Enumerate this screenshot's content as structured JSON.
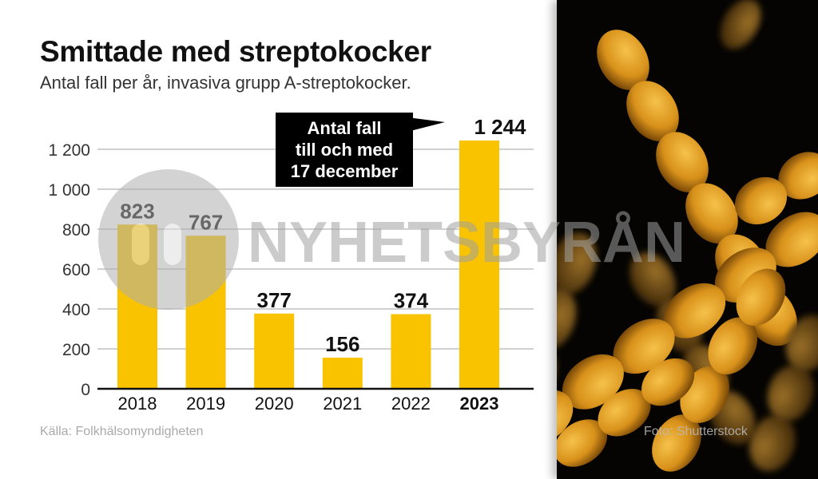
{
  "title": "Smittade med streptokocker",
  "subtitle": "Antal fall per år, invasiva grupp A-streptokocker.",
  "source": "Källa: Folkhälsomyndigheten",
  "photo_credit": "Foto: Shutterstock",
  "watermark": "NYHETSBYRÅN",
  "colors": {
    "bar": "#f9c300",
    "grid": "#b5b5b5",
    "axis": "#111111",
    "annotation_bg": "#000000"
  },
  "chart_data": {
    "type": "bar",
    "title": "Smittade med streptokocker",
    "subtitle": "Antal fall per år, invasiva grupp A-streptokocker.",
    "xlabel": "",
    "ylabel": "",
    "categories": [
      "2018",
      "2019",
      "2020",
      "2021",
      "2022",
      "2023"
    ],
    "values": [
      823,
      767,
      377,
      156,
      374,
      1244
    ],
    "value_labels": [
      "823",
      "767",
      "377",
      "156",
      "374",
      "1 244"
    ],
    "highlight_category": "2023",
    "ylim": [
      0,
      1200
    ],
    "yticks": [
      0,
      200,
      400,
      600,
      800,
      1000,
      1200
    ],
    "ytick_labels": [
      "0",
      "200",
      "400",
      "600",
      "800",
      "1 000",
      "1 200"
    ],
    "grid": true,
    "annotation": {
      "lines": [
        "Antal fall",
        "till och med",
        "17 december"
      ],
      "target": "2023"
    }
  }
}
